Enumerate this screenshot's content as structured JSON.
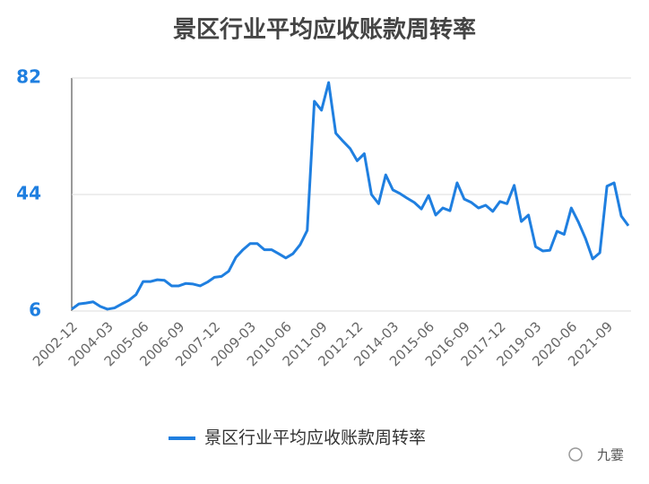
{
  "chart_data": {
    "type": "line",
    "title": "景区行业平均应收账款周转率",
    "categories": [
      "2002-12",
      null,
      null,
      null,
      null,
      "2004-03",
      null,
      null,
      null,
      null,
      "2005-06",
      null,
      null,
      null,
      null,
      "2006-09",
      null,
      null,
      null,
      null,
      "2007-12",
      null,
      null,
      null,
      null,
      "2009-03",
      null,
      null,
      null,
      null,
      "2010-06",
      null,
      null,
      null,
      null,
      "2011-09",
      null,
      null,
      null,
      null,
      "2012-12",
      null,
      null,
      null,
      null,
      "2014-03",
      null,
      null,
      null,
      null,
      "2015-06",
      null,
      null,
      null,
      null,
      "2016-09",
      null,
      null,
      null,
      null,
      "2017-12",
      null,
      null,
      null,
      null,
      "2019-03",
      null,
      null,
      null,
      null,
      "2020-06",
      null,
      null,
      null,
      null,
      "2021-09",
      null,
      null,
      null
    ],
    "series": [
      {
        "name": "景区行业平均应收账款周转率",
        "color": "#1f7fe0",
        "values": [
          6.6,
          8.3,
          8.6,
          9,
          7.5,
          6.6,
          7,
          8.3,
          9.5,
          11.3,
          15.6,
          15.6,
          16.2,
          16,
          14.2,
          14.2,
          15,
          14.8,
          14.2,
          15.4,
          17,
          17.3,
          19,
          23.5,
          26,
          28,
          28,
          26,
          26,
          24.7,
          23.3,
          24.7,
          27.6,
          32.3,
          74.4,
          71.5,
          80.5,
          64,
          61.4,
          59,
          55,
          57.3,
          44,
          41,
          50.4,
          45.5,
          44.3,
          42.8,
          41.4,
          39.3,
          43.7,
          37.3,
          39.6,
          38.7,
          47.8,
          42.5,
          41.4,
          39.6,
          40.5,
          38.5,
          41.7,
          41,
          47,
          35.2,
          37.3,
          27,
          25.6,
          25.8,
          32,
          31,
          39.6,
          35,
          29.6,
          23,
          25,
          46.7,
          47.8,
          37,
          33.8
        ]
      }
    ],
    "ylim": [
      6,
      82
    ],
    "yticks": [
      6,
      44,
      82
    ],
    "grid": true,
    "legend": "bottom",
    "watermark": "九霎"
  }
}
